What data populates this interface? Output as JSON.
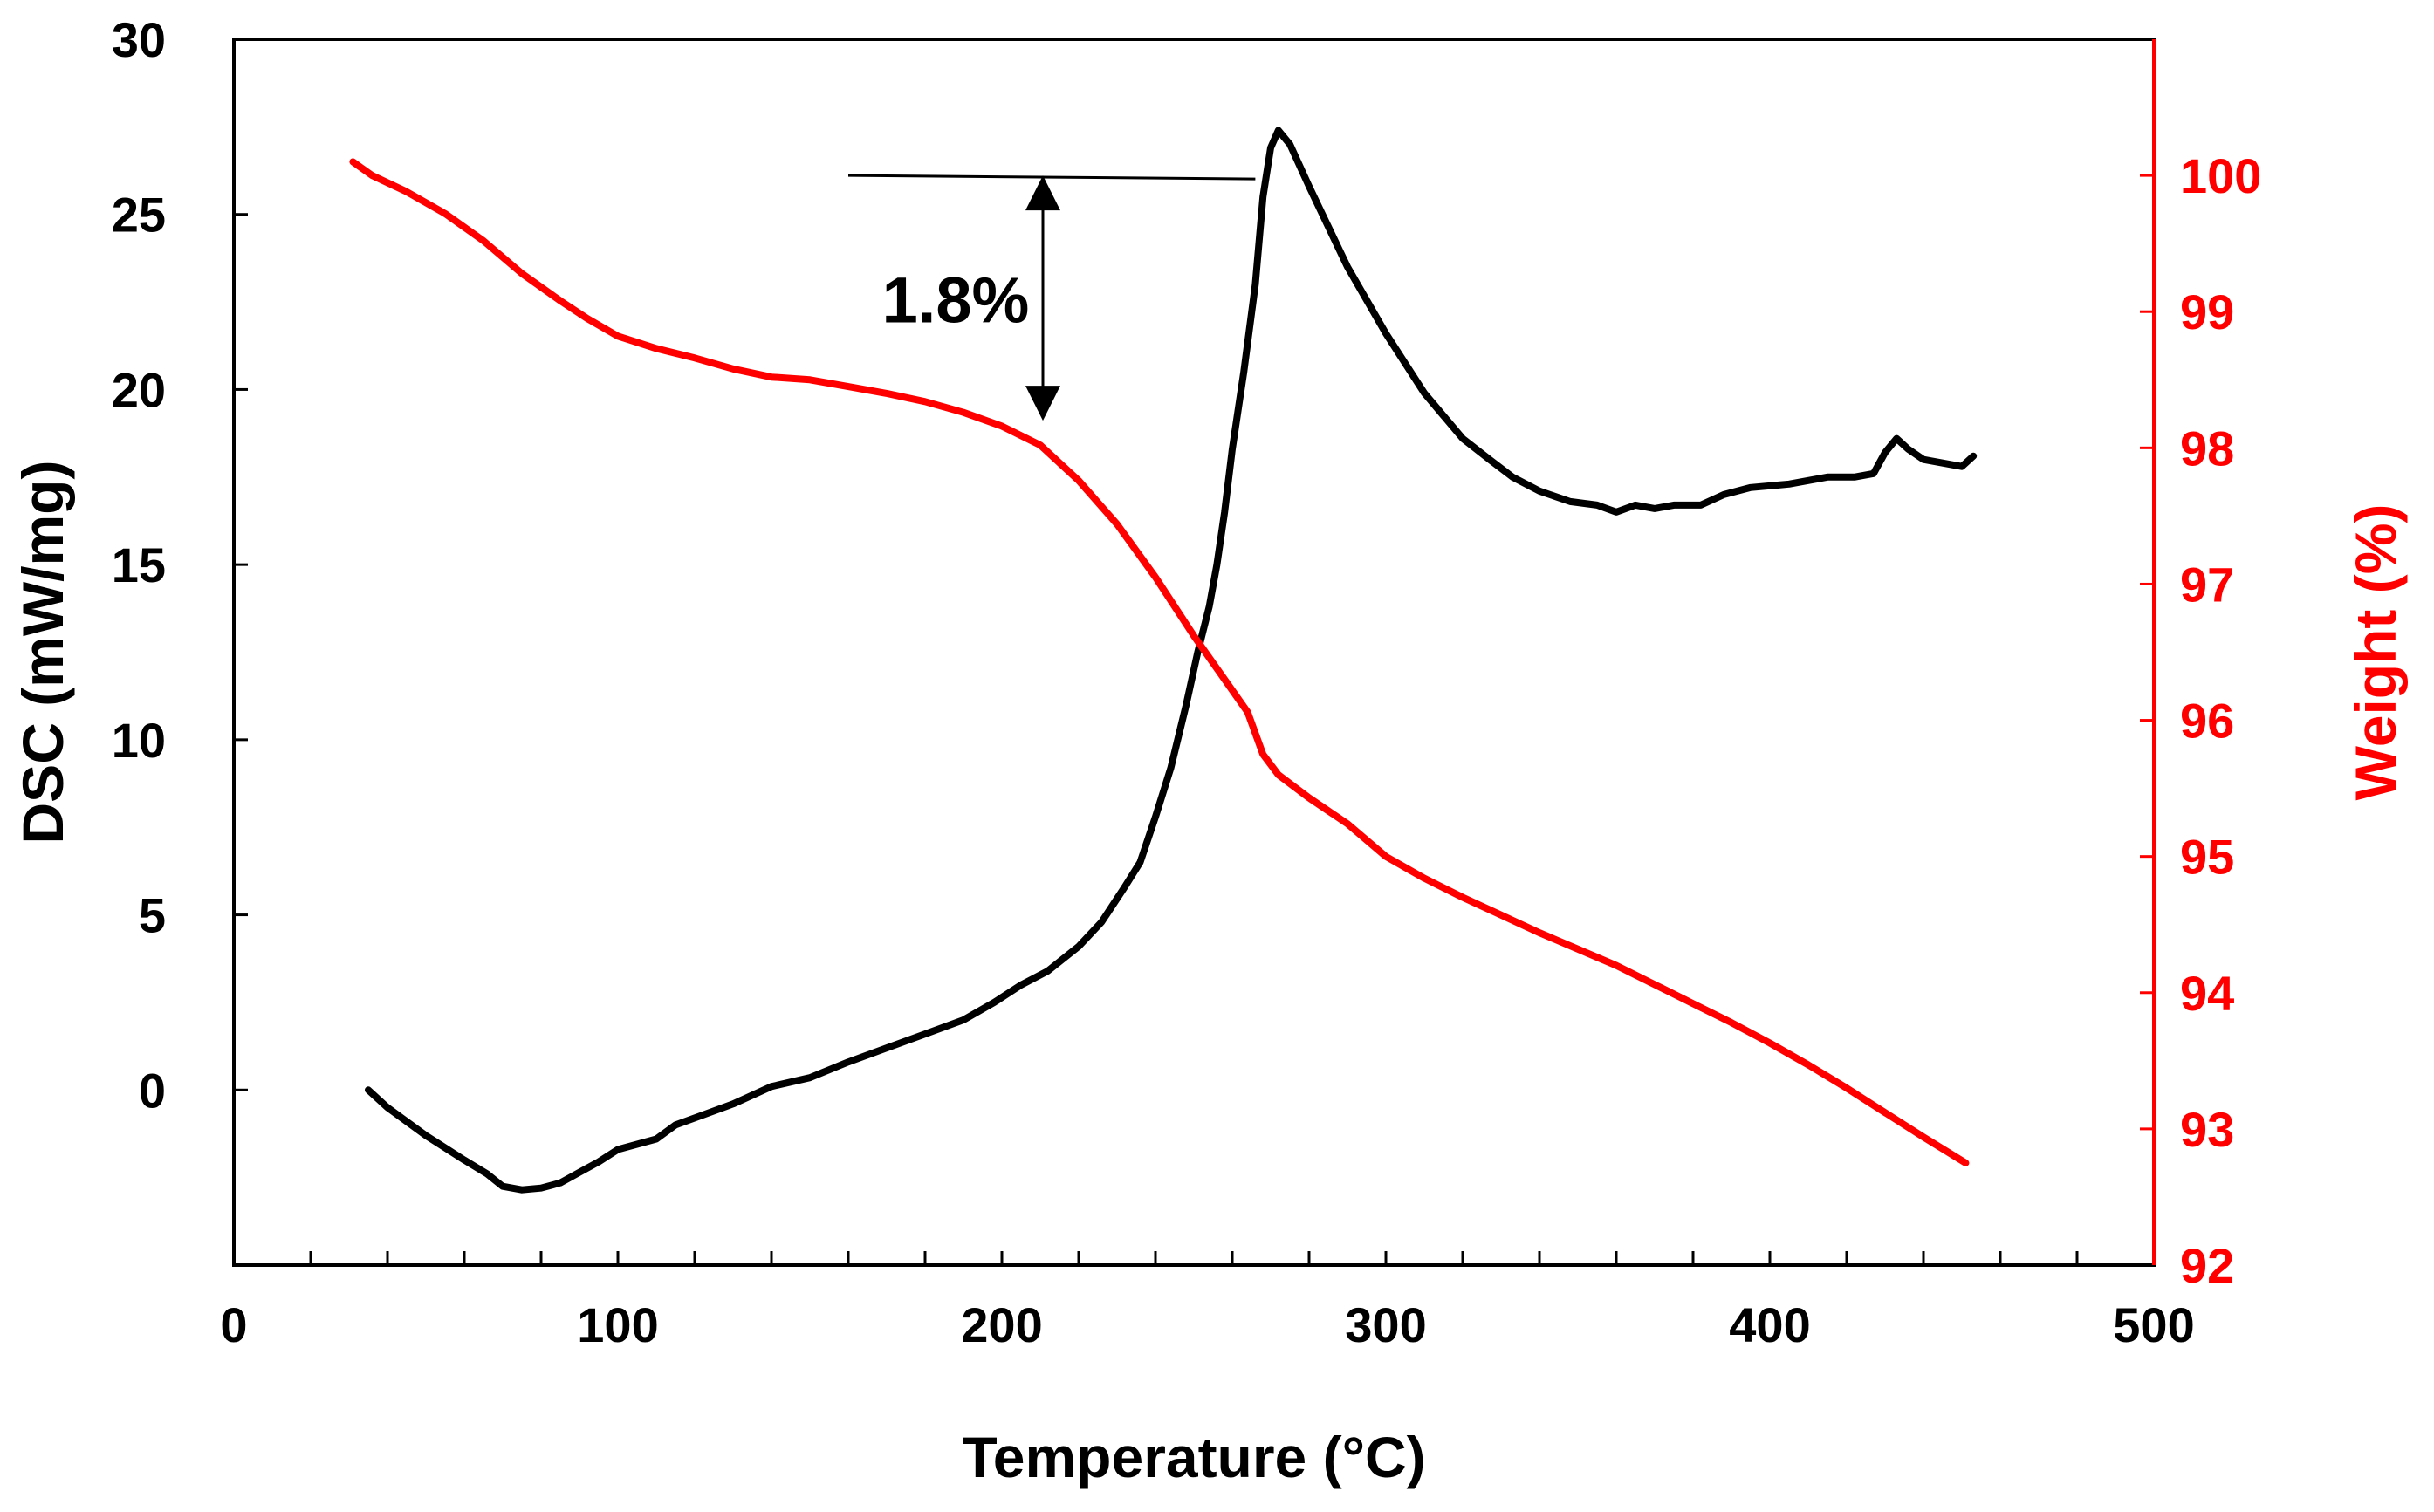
{
  "chart_data": {
    "type": "line",
    "title": "",
    "xlabel": "Temperature (°C)",
    "ylabel_left": "DSC (mW/mg)",
    "ylabel_right": "Weight (%)",
    "xlim": [
      0,
      500
    ],
    "ylim_left": [
      -5,
      30
    ],
    "ylim_right": [
      92,
      101
    ],
    "x_ticks": [
      0,
      100,
      200,
      300,
      400,
      500
    ],
    "y_left_ticks": [
      0,
      5,
      10,
      15,
      20,
      25,
      30
    ],
    "y_right_ticks": [
      92,
      93,
      94,
      95,
      96,
      97,
      98,
      99,
      100
    ],
    "grid": false,
    "colors": {
      "dsc": "#000000",
      "weight": "#ff0000",
      "axis": "#000000",
      "right_axis": "#ff0000"
    },
    "series": [
      {
        "name": "DSC",
        "axis": "left",
        "color": "#000000",
        "points": [
          [
            35,
            0
          ],
          [
            40,
            -0.5
          ],
          [
            50,
            -1.3
          ],
          [
            60,
            -2.0
          ],
          [
            66,
            -2.4
          ],
          [
            70,
            -2.75
          ],
          [
            75,
            -2.85
          ],
          [
            80,
            -2.8
          ],
          [
            85,
            -2.65
          ],
          [
            90,
            -2.35
          ],
          [
            95,
            -2.05
          ],
          [
            100,
            -1.7
          ],
          [
            110,
            -1.4
          ],
          [
            115,
            -1.0
          ],
          [
            120,
            -0.8
          ],
          [
            130,
            -0.4
          ],
          [
            140,
            0.1
          ],
          [
            150,
            0.35
          ],
          [
            160,
            0.8
          ],
          [
            170,
            1.2
          ],
          [
            180,
            1.6
          ],
          [
            190,
            2.0
          ],
          [
            198,
            2.5
          ],
          [
            205,
            3.0
          ],
          [
            212,
            3.4
          ],
          [
            220,
            4.1
          ],
          [
            226,
            4.8
          ],
          [
            232,
            5.8
          ],
          [
            236,
            6.5
          ],
          [
            240,
            7.8
          ],
          [
            244,
            9.2
          ],
          [
            248,
            11.0
          ],
          [
            251,
            12.5
          ],
          [
            254,
            13.8
          ],
          [
            256,
            15.0
          ],
          [
            258,
            16.5
          ],
          [
            260,
            18.3
          ],
          [
            263,
            20.5
          ],
          [
            266,
            23.0
          ],
          [
            268,
            25.5
          ],
          [
            270,
            26.9
          ],
          [
            272,
            27.4
          ],
          [
            275,
            27.0
          ],
          [
            280,
            25.8
          ],
          [
            290,
            23.5
          ],
          [
            300,
            21.6
          ],
          [
            310,
            19.9
          ],
          [
            320,
            18.6
          ],
          [
            327,
            18.0
          ],
          [
            333,
            17.5
          ],
          [
            340,
            17.1
          ],
          [
            348,
            16.8
          ],
          [
            355,
            16.7
          ],
          [
            360,
            16.5
          ],
          [
            365,
            16.7
          ],
          [
            370,
            16.6
          ],
          [
            375,
            16.7
          ],
          [
            382,
            16.7
          ],
          [
            388,
            17.0
          ],
          [
            395,
            17.2
          ],
          [
            405,
            17.3
          ],
          [
            415,
            17.5
          ],
          [
            422,
            17.5
          ],
          [
            427,
            17.6
          ],
          [
            430,
            18.2
          ],
          [
            433,
            18.6
          ],
          [
            436,
            18.3
          ],
          [
            440,
            18.0
          ],
          [
            445,
            17.9
          ],
          [
            450,
            17.8
          ],
          [
            453,
            18.1
          ]
        ]
      },
      {
        "name": "Weight",
        "axis": "right",
        "color": "#ff0000",
        "points": [
          [
            31,
            100.1
          ],
          [
            36,
            100.0
          ],
          [
            45,
            99.88
          ],
          [
            55,
            99.72
          ],
          [
            65,
            99.52
          ],
          [
            75,
            99.28
          ],
          [
            85,
            99.08
          ],
          [
            92,
            98.95
          ],
          [
            100,
            98.82
          ],
          [
            110,
            98.73
          ],
          [
            120,
            98.66
          ],
          [
            130,
            98.58
          ],
          [
            140,
            98.52
          ],
          [
            150,
            98.5
          ],
          [
            160,
            98.45
          ],
          [
            170,
            98.4
          ],
          [
            180,
            98.34
          ],
          [
            190,
            98.26
          ],
          [
            200,
            98.16
          ],
          [
            210,
            98.02
          ],
          [
            220,
            97.76
          ],
          [
            230,
            97.44
          ],
          [
            240,
            97.05
          ],
          [
            250,
            96.62
          ],
          [
            258,
            96.3
          ],
          [
            264,
            96.06
          ],
          [
            268,
            95.75
          ],
          [
            272,
            95.6
          ],
          [
            280,
            95.43
          ],
          [
            290,
            95.24
          ],
          [
            300,
            95.0
          ],
          [
            310,
            94.84
          ],
          [
            320,
            94.7
          ],
          [
            330,
            94.57
          ],
          [
            340,
            94.44
          ],
          [
            350,
            94.32
          ],
          [
            360,
            94.2
          ],
          [
            370,
            94.06
          ],
          [
            380,
            93.92
          ],
          [
            390,
            93.78
          ],
          [
            400,
            93.63
          ],
          [
            410,
            93.47
          ],
          [
            420,
            93.3
          ],
          [
            430,
            93.12
          ],
          [
            440,
            92.94
          ],
          [
            451,
            92.75
          ]
        ]
      }
    ],
    "annotation": {
      "label": "1.8%",
      "x": 205,
      "top_weight": 100.0,
      "bottom_weight": 98.2,
      "ref_line_x_from": 160,
      "ref_line_x_to": 266
    }
  }
}
